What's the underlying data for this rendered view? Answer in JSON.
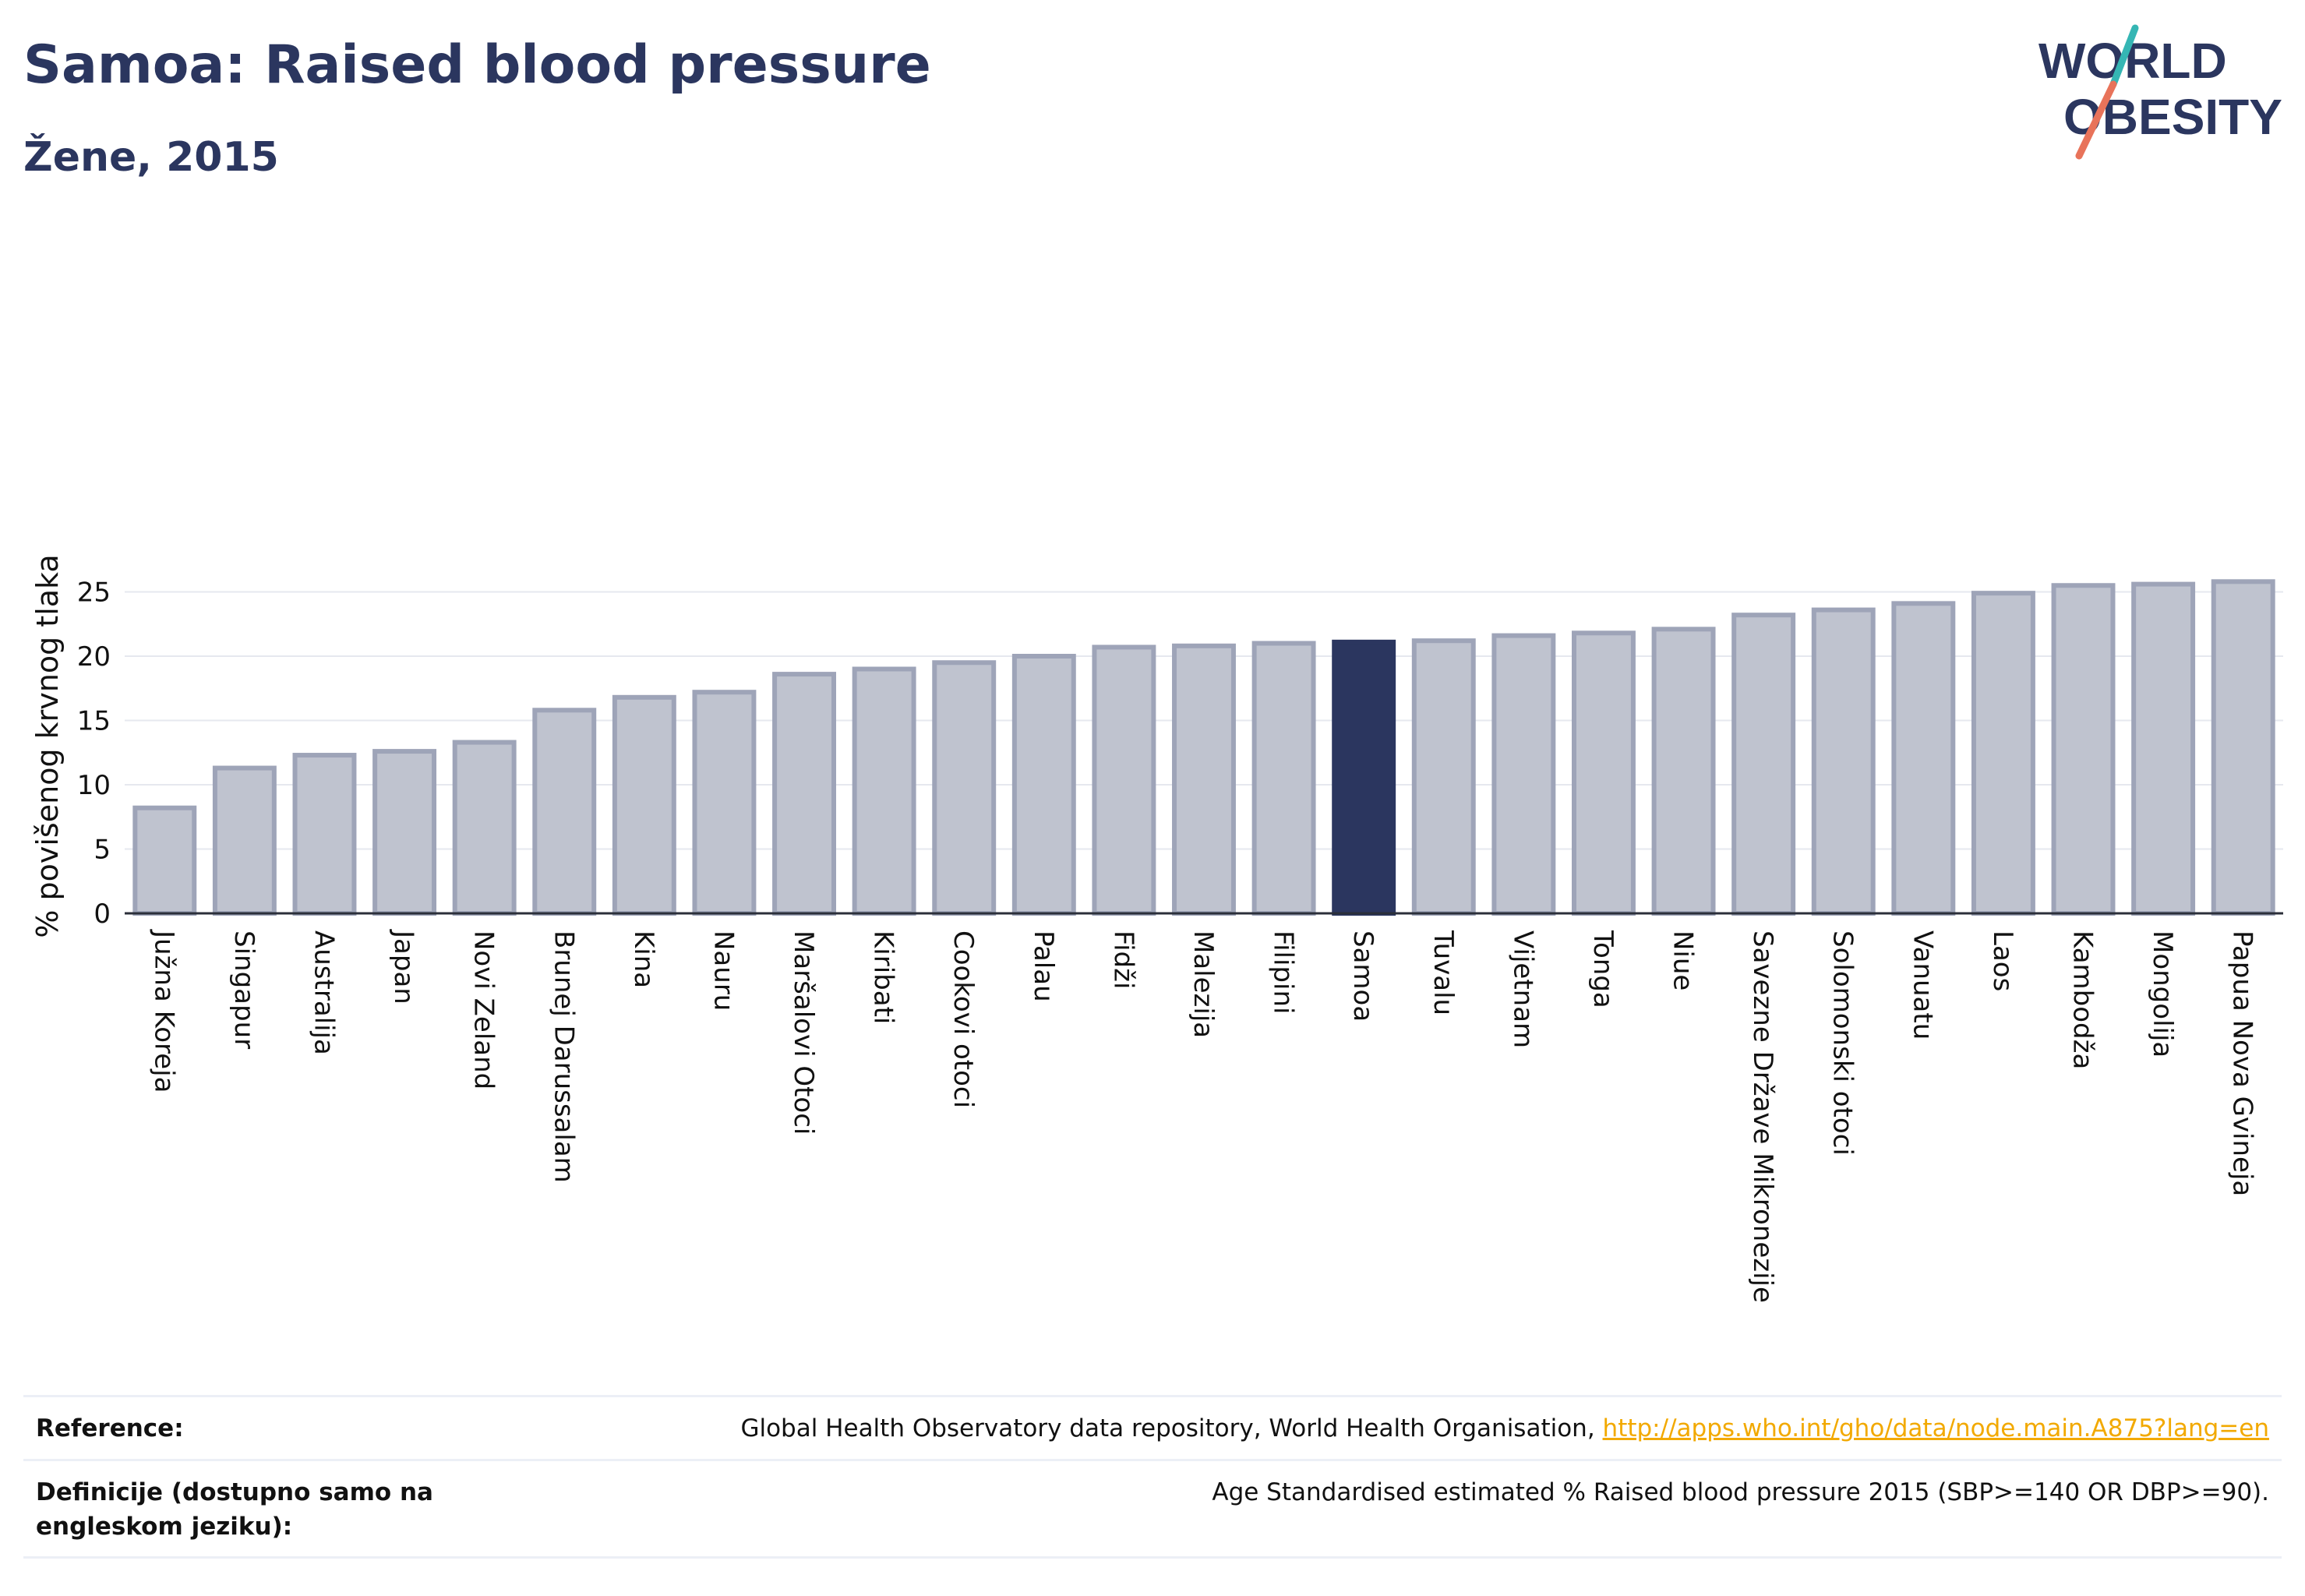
{
  "header": {
    "title": "Samoa: Raised blood pressure",
    "subtitle": "Žene, 2015"
  },
  "logo": {
    "line1": "WORLD",
    "line2": "OBESITY",
    "brand_color": "#2b365f",
    "accent_teal": "#35b6b4",
    "accent_coral": "#e8735a"
  },
  "chart_data": {
    "type": "bar",
    "title": "Samoa: Raised blood pressure",
    "subtitle": "Žene, 2015",
    "xlabel": "",
    "ylabel": "% povišenog krvnog tlaka",
    "ylim": [
      0,
      26
    ],
    "yticks": [
      0,
      5,
      10,
      15,
      20,
      25
    ],
    "grid": true,
    "highlight": "Samoa",
    "colors": {
      "default": "#bfc3cf",
      "default_border": "#9ea4b8",
      "highlight": "#2b365f"
    },
    "categories": [
      "Južna Koreja",
      "Singapur",
      "Australija",
      "Japan",
      "Novi Zeland",
      "Brunej Darussalam",
      "Kina",
      "Nauru",
      "Maršalovi Otoci",
      "Kiribati",
      "Cookovi otoci",
      "Palau",
      "Fidži",
      "Malezija",
      "Filipini",
      "Samoa",
      "Tuvalu",
      "Vijetnam",
      "Tonga",
      "Niue",
      "Savezne Države Mikronezije",
      "Solomonski otoci",
      "Vanuatu",
      "Laos",
      "Kambodža",
      "Mongolija",
      "Papua Nova Gvineja"
    ],
    "values": [
      8.2,
      11.3,
      12.3,
      12.6,
      13.3,
      15.8,
      16.8,
      17.2,
      18.6,
      19.0,
      19.5,
      20.0,
      20.7,
      20.8,
      21.0,
      21.1,
      21.2,
      21.6,
      21.8,
      22.1,
      23.2,
      23.6,
      24.1,
      24.9,
      25.5,
      25.6,
      25.8
    ]
  },
  "footer": {
    "reference_label": "Reference:",
    "reference_text": "Global Health Observatory data repository, World Health Organisation, ",
    "reference_link": "http://apps.who.int/gho/data/node.main.A875?lang=en",
    "definition_label": "Definicije (dostupno samo na engleskom jeziku):",
    "definition_text": "Age Standardised estimated % Raised blood pressure 2015 (SBP>=140 OR DBP>=90)."
  }
}
